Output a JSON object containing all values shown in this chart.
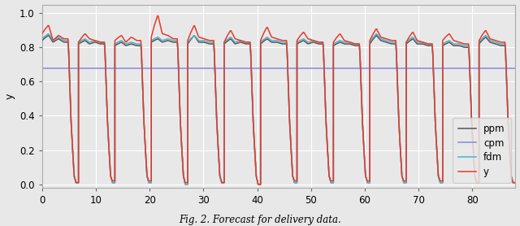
{
  "title": "Fig. 2. Forecast for delivery data.",
  "ylabel": "y",
  "xlim": [
    0,
    88
  ],
  "ylim": [
    -0.02,
    1.05
  ],
  "yticks": [
    0.0,
    0.2,
    0.4,
    0.6,
    0.8,
    1.0
  ],
  "xticks": [
    0,
    10,
    20,
    30,
    40,
    50,
    60,
    70,
    80
  ],
  "background_color": "#e8e8e8",
  "grid_color": "#ffffff",
  "cpm_value": 0.676,
  "series_colors": {
    "y": "#e8392a",
    "fdm": "#4ab5cc",
    "cpm": "#8888dd",
    "ppm": "#555555"
  },
  "figsize": [
    6.4,
    2.78
  ],
  "dpi": 100,
  "y_cycles": [
    [
      0.88,
      0.93,
      0.84,
      0.87,
      0.85,
      0.01
    ],
    [
      0.83,
      0.88,
      0.85,
      0.84,
      0.83,
      0.02
    ],
    [
      0.84,
      0.87,
      0.83,
      0.86,
      0.84,
      0.02
    ],
    [
      0.86,
      0.99,
      0.88,
      0.87,
      0.85,
      0.01
    ],
    [
      0.84,
      0.93,
      0.86,
      0.85,
      0.84,
      0.01
    ],
    [
      0.83,
      0.9,
      0.85,
      0.84,
      0.83,
      0.0
    ],
    [
      0.84,
      0.92,
      0.86,
      0.85,
      0.84,
      0.02
    ],
    [
      0.84,
      0.89,
      0.85,
      0.84,
      0.83,
      0.02
    ],
    [
      0.83,
      0.88,
      0.84,
      0.83,
      0.82,
      0.02
    ],
    [
      0.84,
      0.91,
      0.86,
      0.85,
      0.84,
      0.02
    ],
    [
      0.83,
      0.89,
      0.84,
      0.83,
      0.82,
      0.02
    ],
    [
      0.84,
      0.88,
      0.84,
      0.83,
      0.82,
      0.01
    ],
    [
      0.84,
      0.9,
      0.85,
      0.84,
      0.83,
      0.01
    ]
  ],
  "fdm_cycles": [
    [
      0.85,
      0.88,
      0.84,
      0.86,
      0.84,
      0.01
    ],
    [
      0.83,
      0.85,
      0.83,
      0.84,
      0.83,
      0.01
    ],
    [
      0.82,
      0.84,
      0.82,
      0.83,
      0.82,
      0.01
    ],
    [
      0.84,
      0.86,
      0.84,
      0.85,
      0.84,
      0.0
    ],
    [
      0.83,
      0.87,
      0.84,
      0.84,
      0.83,
      0.01
    ],
    [
      0.83,
      0.86,
      0.83,
      0.84,
      0.83,
      0.0
    ],
    [
      0.83,
      0.86,
      0.84,
      0.84,
      0.83,
      0.01
    ],
    [
      0.83,
      0.85,
      0.83,
      0.84,
      0.83,
      0.01
    ],
    [
      0.82,
      0.84,
      0.83,
      0.83,
      0.82,
      0.01
    ],
    [
      0.83,
      0.88,
      0.85,
      0.84,
      0.83,
      0.01
    ],
    [
      0.83,
      0.86,
      0.83,
      0.83,
      0.82,
      0.01
    ],
    [
      0.82,
      0.84,
      0.82,
      0.82,
      0.81,
      0.01
    ],
    [
      0.83,
      0.87,
      0.84,
      0.83,
      0.82,
      0.01
    ]
  ],
  "ppm_cycles": [
    [
      0.84,
      0.87,
      0.83,
      0.85,
      0.83,
      0.01
    ],
    [
      0.82,
      0.84,
      0.82,
      0.83,
      0.82,
      0.01
    ],
    [
      0.81,
      0.83,
      0.81,
      0.82,
      0.81,
      0.01
    ],
    [
      0.83,
      0.85,
      0.83,
      0.84,
      0.83,
      0.0
    ],
    [
      0.82,
      0.87,
      0.83,
      0.83,
      0.82,
      0.01
    ],
    [
      0.82,
      0.85,
      0.82,
      0.83,
      0.82,
      0.0
    ],
    [
      0.82,
      0.85,
      0.83,
      0.83,
      0.82,
      0.01
    ],
    [
      0.82,
      0.84,
      0.82,
      0.83,
      0.82,
      0.01
    ],
    [
      0.81,
      0.83,
      0.82,
      0.82,
      0.81,
      0.01
    ],
    [
      0.82,
      0.87,
      0.84,
      0.83,
      0.82,
      0.01
    ],
    [
      0.82,
      0.85,
      0.82,
      0.82,
      0.81,
      0.01
    ],
    [
      0.81,
      0.83,
      0.81,
      0.81,
      0.8,
      0.01
    ],
    [
      0.82,
      0.86,
      0.83,
      0.82,
      0.81,
      0.01
    ]
  ]
}
